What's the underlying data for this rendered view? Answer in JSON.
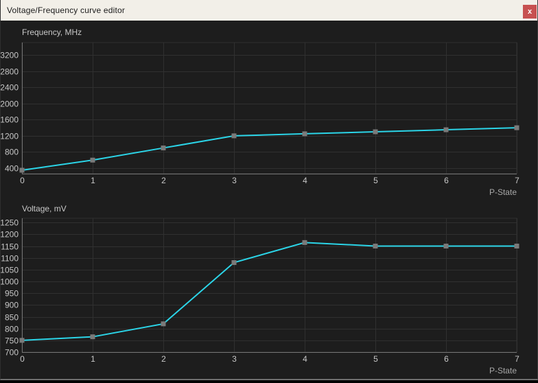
{
  "window": {
    "title": "Voltage/Frequency curve editor",
    "close_label": "x"
  },
  "colors": {
    "window_bg": "#1d1d1d",
    "titlebar_bg": "#f2efe8",
    "titlebar_text": "#1a1a1a",
    "close_bg": "#c75050",
    "close_text": "#ffffff",
    "curve": "#2bd5e8",
    "marker": "#7a7a7a",
    "grid": "#303030",
    "axis": "#757575",
    "tick_text": "#c8c8c8",
    "axis_label_text": "#a8a8a8"
  },
  "chart_data": [
    {
      "type": "line",
      "title": "Frequency, MHz",
      "xlabel": "P-State",
      "ylabel": "",
      "x": [
        0,
        1,
        2,
        3,
        4,
        5,
        6,
        7
      ],
      "values": [
        350,
        600,
        900,
        1200,
        1250,
        1300,
        1350,
        1400
      ],
      "xticks": [
        "0",
        "1",
        "2",
        "3",
        "4",
        "5",
        "6",
        "7"
      ],
      "yticks": [
        400,
        800,
        1200,
        1600,
        2000,
        2400,
        2800,
        3200
      ],
      "xlim": [
        0,
        7
      ],
      "ylim": [
        265,
        3505
      ],
      "grid": true,
      "legend": false
    },
    {
      "type": "line",
      "title": "Voltage, mV",
      "xlabel": "P-State",
      "ylabel": "",
      "x": [
        0,
        1,
        2,
        3,
        4,
        5,
        6,
        7
      ],
      "values": [
        750,
        765,
        820,
        1080,
        1165,
        1150,
        1150,
        1150
      ],
      "xticks": [
        "0",
        "1",
        "2",
        "3",
        "4",
        "5",
        "6",
        "7"
      ],
      "yticks": [
        700,
        750,
        800,
        850,
        900,
        950,
        1000,
        1050,
        1100,
        1150,
        1200,
        1250
      ],
      "xlim": [
        0,
        7
      ],
      "ylim": [
        700,
        1268
      ],
      "grid": true,
      "legend": false
    }
  ]
}
